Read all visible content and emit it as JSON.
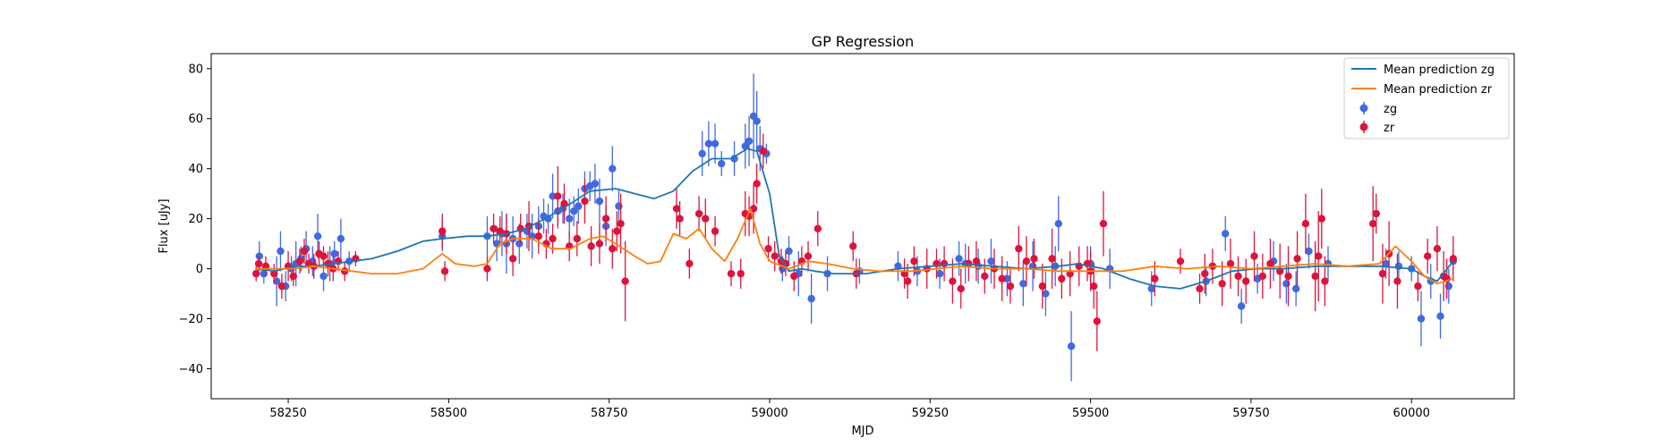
{
  "chart_data": {
    "type": "scatter",
    "title": "GP Regression",
    "xlabel": "MJD",
    "ylabel": "Flux [uJy]",
    "xlim": [
      58130,
      60160
    ],
    "ylim": [
      -52,
      86
    ],
    "xticks": [
      58250,
      58500,
      58750,
      59000,
      59250,
      59500,
      59750,
      60000
    ],
    "yticks": [
      -40,
      -20,
      0,
      20,
      40,
      60,
      80
    ],
    "grid": false,
    "legend_position": "top-right",
    "lines": [
      {
        "name": "Mean prediction zg",
        "color": "#1f77b4",
        "points": [
          [
            58200,
            0
          ],
          [
            58230,
            -1
          ],
          [
            58260,
            1
          ],
          [
            58290,
            1
          ],
          [
            58320,
            2
          ],
          [
            58350,
            3
          ],
          [
            58380,
            4
          ],
          [
            58420,
            7
          ],
          [
            58460,
            11
          ],
          [
            58490,
            12
          ],
          [
            58530,
            13
          ],
          [
            58560,
            13
          ],
          [
            58590,
            14
          ],
          [
            58620,
            16
          ],
          [
            58650,
            20
          ],
          [
            58690,
            26
          ],
          [
            58720,
            31
          ],
          [
            58760,
            32
          ],
          [
            58790,
            30
          ],
          [
            58820,
            28
          ],
          [
            58850,
            31
          ],
          [
            58880,
            39
          ],
          [
            58910,
            44
          ],
          [
            58940,
            44
          ],
          [
            58965,
            48
          ],
          [
            58980,
            47
          ],
          [
            59000,
            30
          ],
          [
            59015,
            5
          ],
          [
            59030,
            -1
          ],
          [
            59050,
            0
          ],
          [
            59070,
            -1
          ],
          [
            59100,
            -2
          ],
          [
            59150,
            -2
          ],
          [
            59200,
            0
          ],
          [
            59250,
            1
          ],
          [
            59300,
            2
          ],
          [
            59350,
            1
          ],
          [
            59400,
            0
          ],
          [
            59450,
            1
          ],
          [
            59480,
            2
          ],
          [
            59520,
            0
          ],
          [
            59560,
            -4
          ],
          [
            59600,
            -7
          ],
          [
            59640,
            -8
          ],
          [
            59680,
            -5
          ],
          [
            59720,
            -1
          ],
          [
            59760,
            0
          ],
          [
            59800,
            0
          ],
          [
            59850,
            1
          ],
          [
            59900,
            1
          ],
          [
            59950,
            1
          ],
          [
            60000,
            0
          ],
          [
            60020,
            -3
          ],
          [
            60040,
            -5
          ],
          [
            60065,
            3
          ]
        ]
      },
      {
        "name": "Mean prediction zr",
        "color": "#ff7f0e",
        "points": [
          [
            58200,
            0
          ],
          [
            58230,
            0
          ],
          [
            58260,
            0
          ],
          [
            58290,
            1
          ],
          [
            58320,
            0
          ],
          [
            58350,
            -1
          ],
          [
            58380,
            -2
          ],
          [
            58420,
            -2
          ],
          [
            58460,
            0
          ],
          [
            58490,
            6
          ],
          [
            58510,
            2
          ],
          [
            58540,
            1
          ],
          [
            58560,
            2
          ],
          [
            58580,
            10
          ],
          [
            58600,
            12
          ],
          [
            58630,
            12
          ],
          [
            58660,
            8
          ],
          [
            58690,
            8
          ],
          [
            58720,
            12
          ],
          [
            58740,
            13
          ],
          [
            58760,
            10
          ],
          [
            58790,
            5
          ],
          [
            58810,
            2
          ],
          [
            58830,
            3
          ],
          [
            58850,
            14
          ],
          [
            58870,
            12
          ],
          [
            58890,
            16
          ],
          [
            58910,
            8
          ],
          [
            58930,
            3
          ],
          [
            58950,
            12
          ],
          [
            58970,
            24
          ],
          [
            58985,
            10
          ],
          [
            59000,
            3
          ],
          [
            59030,
            0
          ],
          [
            59060,
            3
          ],
          [
            59090,
            2
          ],
          [
            59130,
            0
          ],
          [
            59170,
            -1
          ],
          [
            59220,
            -1
          ],
          [
            59260,
            0
          ],
          [
            59300,
            1
          ],
          [
            59350,
            0
          ],
          [
            59400,
            0
          ],
          [
            59450,
            -1
          ],
          [
            59500,
            -1
          ],
          [
            59550,
            -1
          ],
          [
            59600,
            1
          ],
          [
            59650,
            0
          ],
          [
            59700,
            1
          ],
          [
            59750,
            0
          ],
          [
            59800,
            1
          ],
          [
            59850,
            2
          ],
          [
            59900,
            1
          ],
          [
            59950,
            2
          ],
          [
            59975,
            9
          ],
          [
            60000,
            3
          ],
          [
            60020,
            -3
          ],
          [
            60040,
            -6
          ],
          [
            60065,
            -4
          ]
        ]
      }
    ],
    "series": [
      {
        "name": "zg",
        "color": "#4169e1",
        "x": [
          58205,
          58212,
          58232,
          58238,
          58246,
          58255,
          58262,
          58270,
          58278,
          58288,
          58296,
          58305,
          58315,
          58322,
          58332,
          58345,
          58490,
          58560,
          58575,
          58583,
          58590,
          58600,
          58610,
          58622,
          58630,
          58640,
          58648,
          58655,
          58662,
          58670,
          58678,
          58688,
          58695,
          58702,
          58712,
          58720,
          58728,
          58735,
          58745,
          58755,
          58765,
          58895,
          58905,
          58915,
          58925,
          58945,
          58962,
          58968,
          58975,
          58980,
          58985,
          58995,
          59020,
          59030,
          59045,
          59065,
          59090,
          59140,
          59200,
          59230,
          59265,
          59295,
          59305,
          59325,
          59345,
          59370,
          59395,
          59410,
          59430,
          59445,
          59450,
          59470,
          59500,
          59530,
          59595,
          59680,
          59710,
          59735,
          59760,
          59785,
          59805,
          59820,
          59840,
          59870,
          59960,
          59980,
          60000,
          60015,
          60030,
          60045,
          60058,
          60065
        ],
        "y": [
          5,
          -2,
          -5,
          7,
          -7,
          0,
          2,
          4,
          8,
          3,
          13,
          -3,
          2,
          6,
          12,
          3,
          13,
          13,
          10,
          14,
          10,
          12,
          10,
          15,
          13,
          17,
          21,
          20,
          29,
          23,
          24,
          20,
          23,
          25,
          32,
          33,
          34,
          27,
          17,
          40,
          25,
          46,
          50,
          50,
          42,
          44,
          49,
          51,
          61,
          59,
          48,
          46,
          0,
          7,
          -2,
          -12,
          -2,
          -1,
          1,
          -1,
          -2,
          4,
          2,
          1,
          3,
          -4,
          -6,
          1,
          -10,
          1,
          18,
          -31,
          2,
          0,
          -8,
          -5,
          14,
          -15,
          -4,
          3,
          -6,
          -8,
          7,
          2,
          2,
          1,
          0,
          -20,
          -5,
          -19,
          -7,
          3
        ],
        "err": [
          6,
          4,
          10,
          8,
          6,
          5,
          9,
          5,
          7,
          6,
          9,
          6,
          7,
          5,
          8,
          4,
          6,
          8,
          7,
          9,
          12,
          9,
          8,
          7,
          9,
          8,
          7,
          6,
          9,
          7,
          6,
          8,
          6,
          7,
          7,
          6,
          8,
          9,
          8,
          9,
          7,
          9,
          9,
          8,
          5,
          7,
          9,
          10,
          17,
          12,
          9,
          4,
          5,
          6,
          9,
          10,
          7,
          5,
          6,
          6,
          6,
          7,
          8,
          7,
          9,
          7,
          9,
          10,
          9,
          8,
          11,
          14,
          7,
          8,
          7,
          6,
          7,
          7,
          6,
          8,
          8,
          7,
          7,
          7,
          6,
          6,
          5,
          11,
          7,
          9,
          7,
          5
        ]
      },
      {
        "name": "zr",
        "color": "#dc143c",
        "x": [
          58200,
          58204,
          58215,
          58228,
          58240,
          58250,
          58258,
          58268,
          58275,
          58282,
          58290,
          58298,
          58305,
          58312,
          58320,
          58328,
          58338,
          58355,
          58490,
          58494,
          58560,
          58570,
          58580,
          58590,
          58600,
          58612,
          58625,
          58640,
          58652,
          58662,
          58670,
          58680,
          58688,
          58700,
          58712,
          58722,
          58735,
          58745,
          58755,
          58762,
          58768,
          58775,
          58855,
          58860,
          58875,
          58890,
          58900,
          58915,
          58940,
          58955,
          58962,
          58968,
          58975,
          58980,
          58990,
          58998,
          59008,
          59018,
          59025,
          59038,
          59050,
          59060,
          59075,
          59130,
          59135,
          59210,
          59215,
          59225,
          59245,
          59260,
          59272,
          59285,
          59298,
          59310,
          59322,
          59335,
          59350,
          59362,
          59375,
          59388,
          59400,
          59412,
          59425,
          59440,
          59455,
          59468,
          59482,
          59495,
          59500,
          59505,
          59510,
          59520,
          59600,
          59640,
          59670,
          59678,
          59690,
          59705,
          59718,
          59730,
          59742,
          59755,
          59768,
          59780,
          59795,
          59808,
          59822,
          59835,
          59850,
          59855,
          59860,
          59865,
          59940,
          59945,
          59955,
          59965,
          59978,
          60010,
          60025,
          60040,
          60050,
          60055,
          60065
        ],
        "y": [
          -2,
          2,
          1,
          -2,
          -7,
          1,
          -3,
          3,
          7,
          2,
          1,
          6,
          5,
          2,
          0,
          3,
          -1,
          4,
          15,
          -1,
          0,
          16,
          15,
          14,
          4,
          16,
          17,
          13,
          10,
          12,
          29,
          26,
          9,
          12,
          27,
          9,
          10,
          20,
          8,
          15,
          18,
          -5,
          24,
          20,
          2,
          22,
          20,
          15,
          -2,
          -2,
          22,
          21,
          24,
          34,
          47,
          8,
          5,
          3,
          2,
          -3,
          3,
          5,
          16,
          9,
          -2,
          -2,
          -5,
          3,
          0,
          2,
          2,
          -5,
          -8,
          2,
          3,
          -3,
          0,
          -4,
          -7,
          8,
          3,
          4,
          -7,
          4,
          -4,
          -2,
          1,
          2,
          -1,
          -7,
          -21,
          18,
          -4,
          3,
          -8,
          -2,
          1,
          -6,
          2,
          -3,
          -5,
          5,
          -3,
          2,
          -1,
          -3,
          4,
          18,
          -3,
          5,
          20,
          -5,
          18,
          22,
          -2,
          6,
          -5,
          -7,
          5,
          8,
          -3,
          -4,
          4
        ],
        "err": [
          3,
          3,
          4,
          4,
          5,
          6,
          4,
          5,
          5,
          4,
          5,
          5,
          4,
          5,
          5,
          4,
          4,
          3,
          7,
          4,
          5,
          6,
          6,
          8,
          7,
          6,
          10,
          7,
          6,
          6,
          12,
          8,
          6,
          7,
          9,
          8,
          8,
          9,
          8,
          8,
          12,
          16,
          8,
          7,
          6,
          7,
          8,
          6,
          5,
          6,
          9,
          8,
          10,
          8,
          7,
          5,
          6,
          5,
          5,
          6,
          6,
          6,
          7,
          6,
          6,
          6,
          7,
          6,
          8,
          6,
          7,
          9,
          8,
          7,
          8,
          7,
          8,
          9,
          7,
          9,
          10,
          8,
          9,
          12,
          8,
          9,
          8,
          7,
          8,
          9,
          12,
          13,
          7,
          5,
          6,
          8,
          7,
          9,
          10,
          8,
          9,
          10,
          9,
          10,
          11,
          12,
          11,
          12,
          14,
          18,
          12,
          10,
          15,
          8,
          12,
          13,
          11,
          6,
          7,
          9,
          10,
          8,
          9
        ]
      }
    ]
  }
}
